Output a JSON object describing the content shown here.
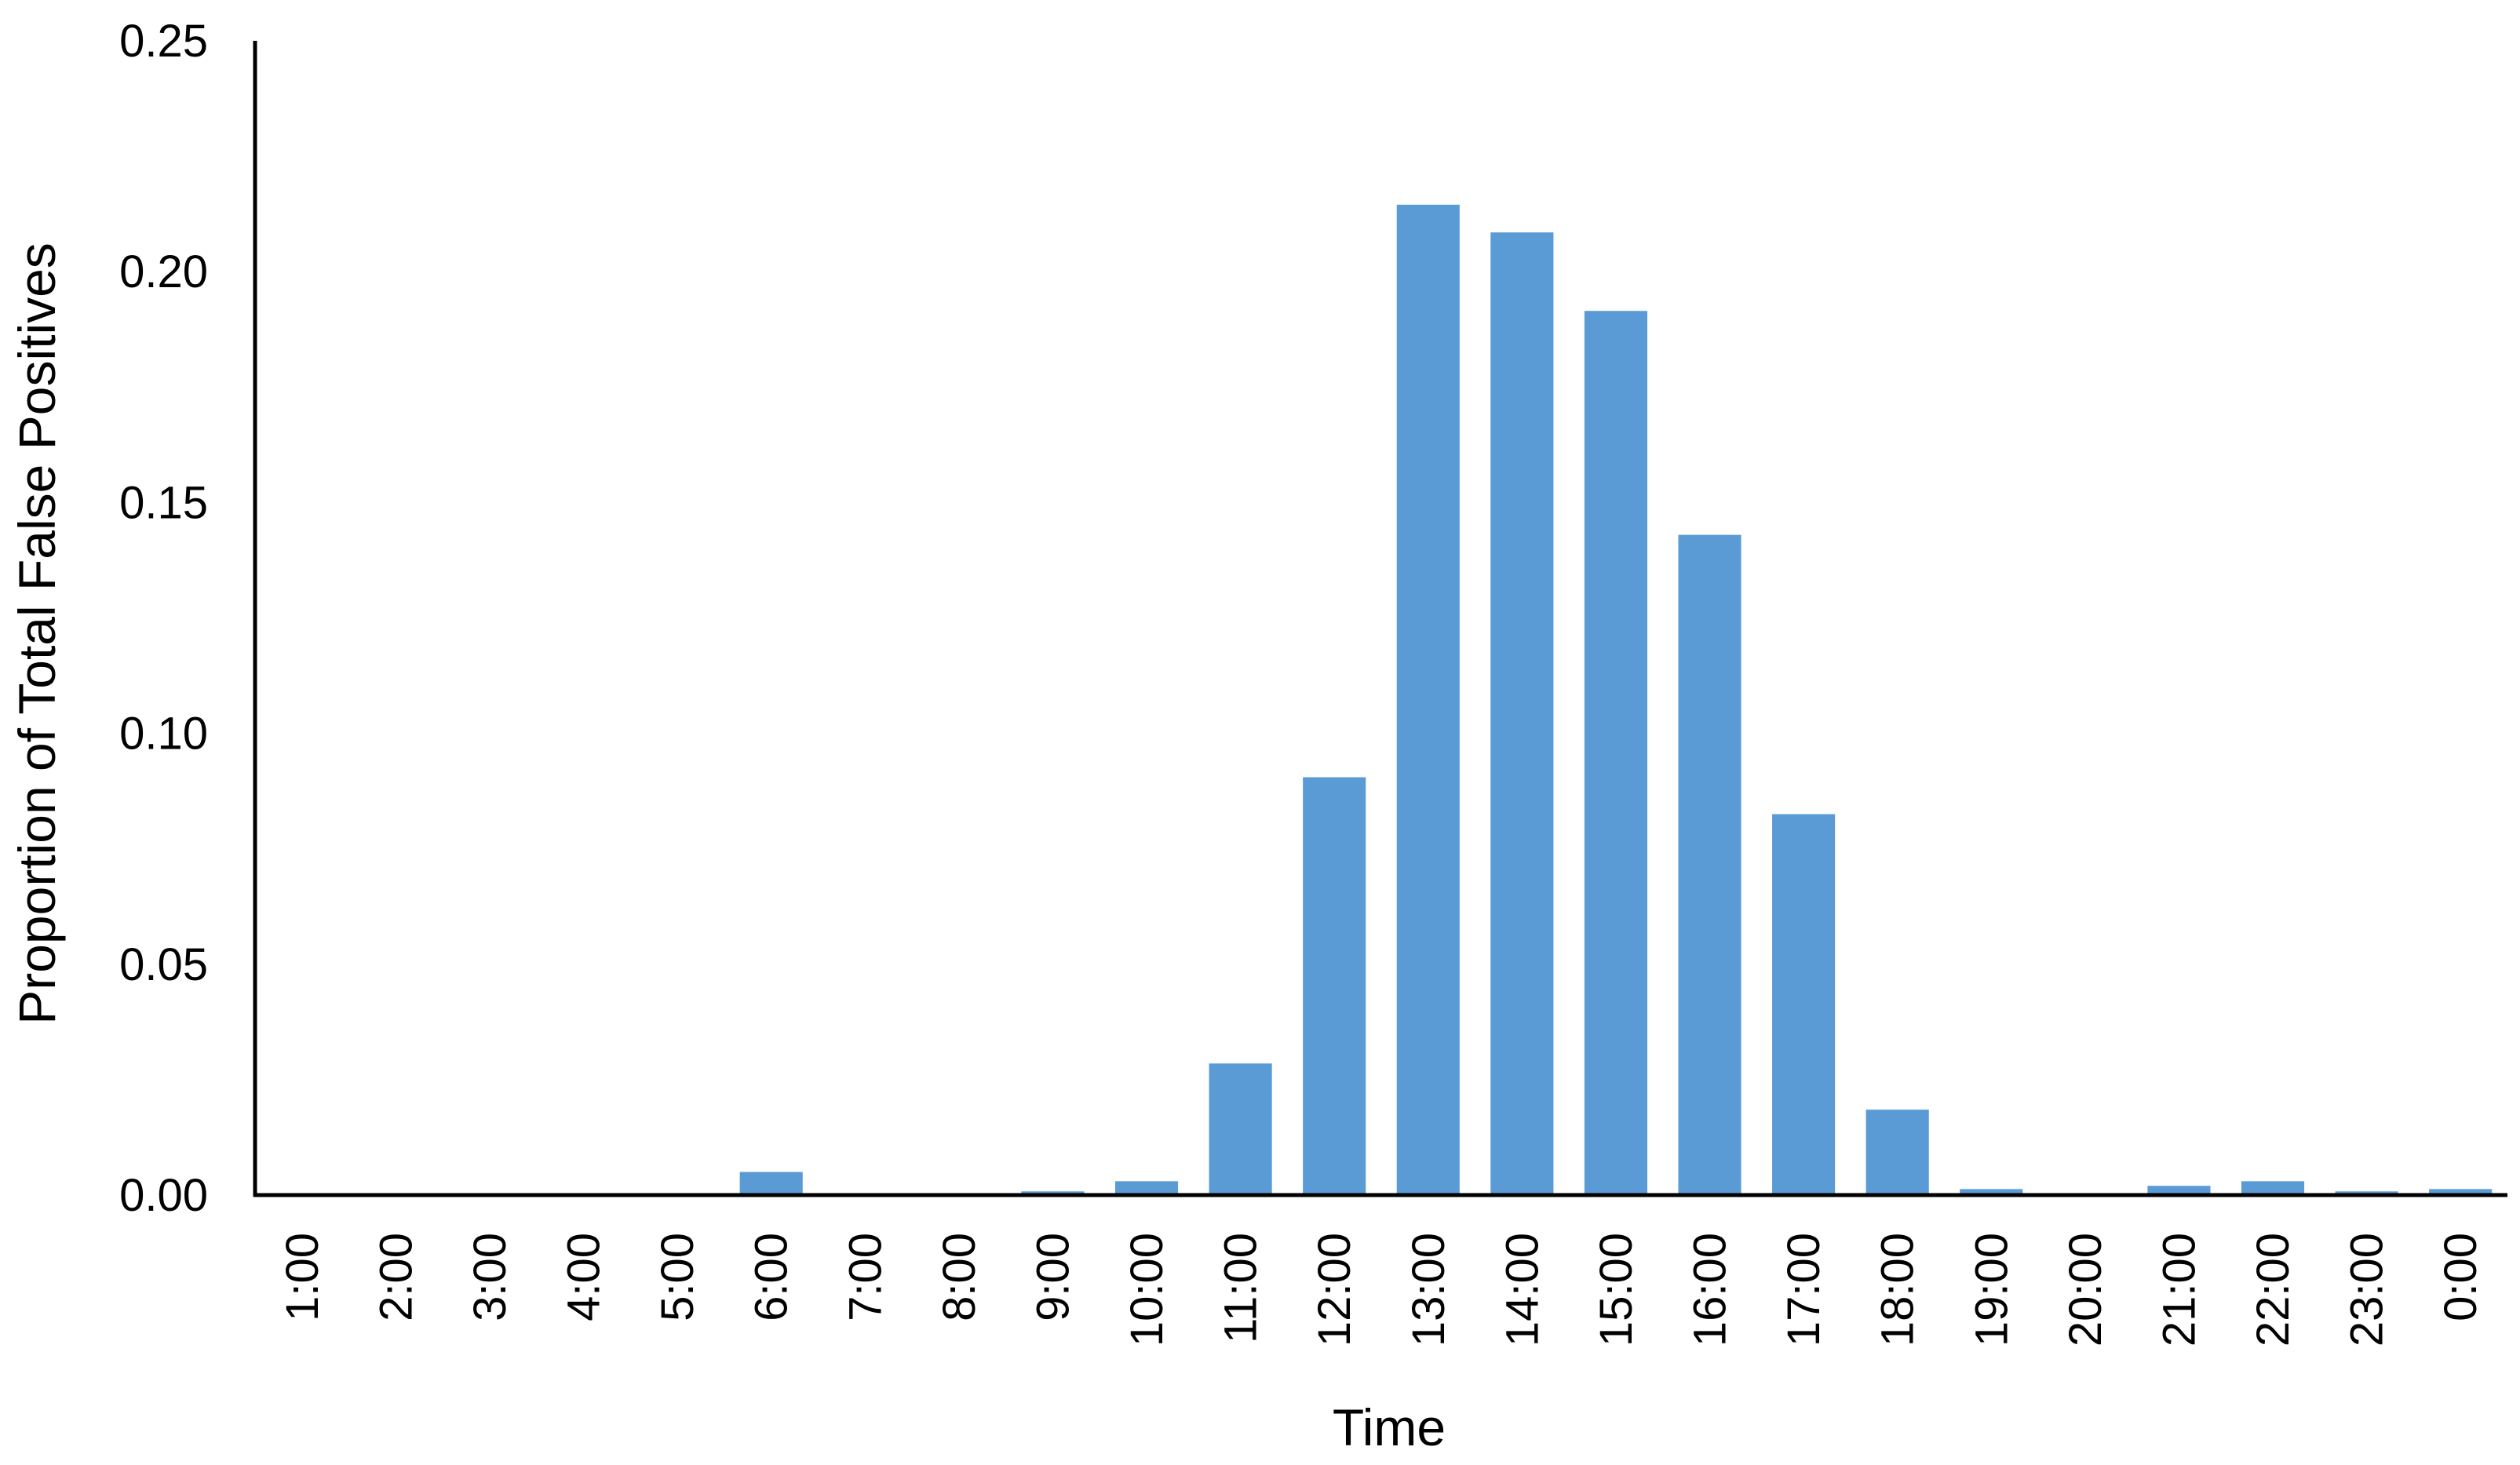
{
  "chart_data": {
    "type": "bar",
    "title": "",
    "xlabel": "Time",
    "ylabel": "Proportion of Total False Positives",
    "ylim": [
      0,
      0.25
    ],
    "yticks": [
      "0.00",
      "0.05",
      "0.10",
      "0.15",
      "0.20",
      "0.25"
    ],
    "yticks_values": [
      0,
      0.05,
      0.1,
      0.15,
      0.2,
      0.25
    ],
    "grid": false,
    "legend": "none",
    "bar_color": "#5b9bd5",
    "categories": [
      "1:00",
      "2:00",
      "3:00",
      "4:00",
      "5:00",
      "6:00",
      "7:00",
      "8:00",
      "9:00",
      "10:00",
      "11:00",
      "12:00",
      "13:00",
      "14:00",
      "15:00",
      "16:00",
      "17:00",
      "18:00",
      "19:00",
      "20:00",
      "21:00",
      "22:00",
      "23:00",
      "0:00"
    ],
    "values": [
      0,
      0,
      0,
      0,
      0,
      0.005,
      0,
      0,
      0.0008,
      0.003,
      0.0285,
      0.0905,
      0.2145,
      0.2085,
      0.1915,
      0.143,
      0.0825,
      0.0185,
      0.0013,
      0,
      0.002,
      0.003,
      0.0008,
      0.0013
    ]
  }
}
